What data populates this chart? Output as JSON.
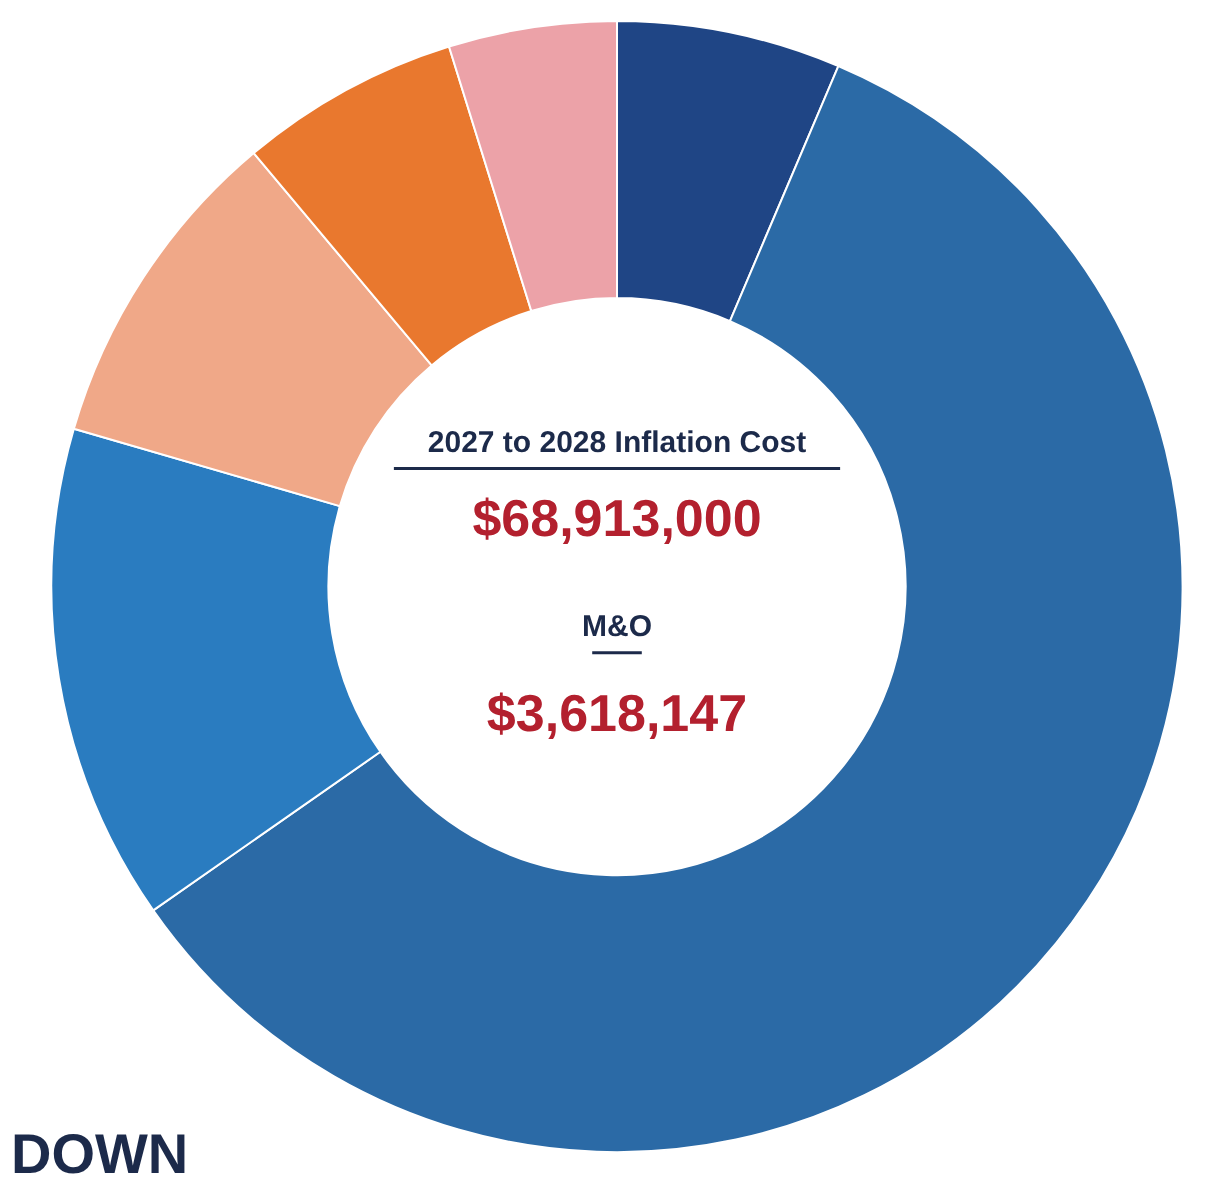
{
  "chart_data": {
    "type": "donut",
    "categories": [
      null,
      null,
      null,
      null,
      null,
      null
    ],
    "values": [
      6.4,
      58.9,
      14.2,
      9.4,
      6.3,
      4.8
    ],
    "colors": [
      "#1f4585",
      "#2b6aa6",
      "#2a7cc0",
      "#f0a888",
      "#e9782e",
      "#eca2a8"
    ],
    "annotations": [
      "2027 to 2028 Inflation Cost",
      "$68,913,000",
      "M&O",
      "$3,618,147",
      "DOWN"
    ]
  }
}
